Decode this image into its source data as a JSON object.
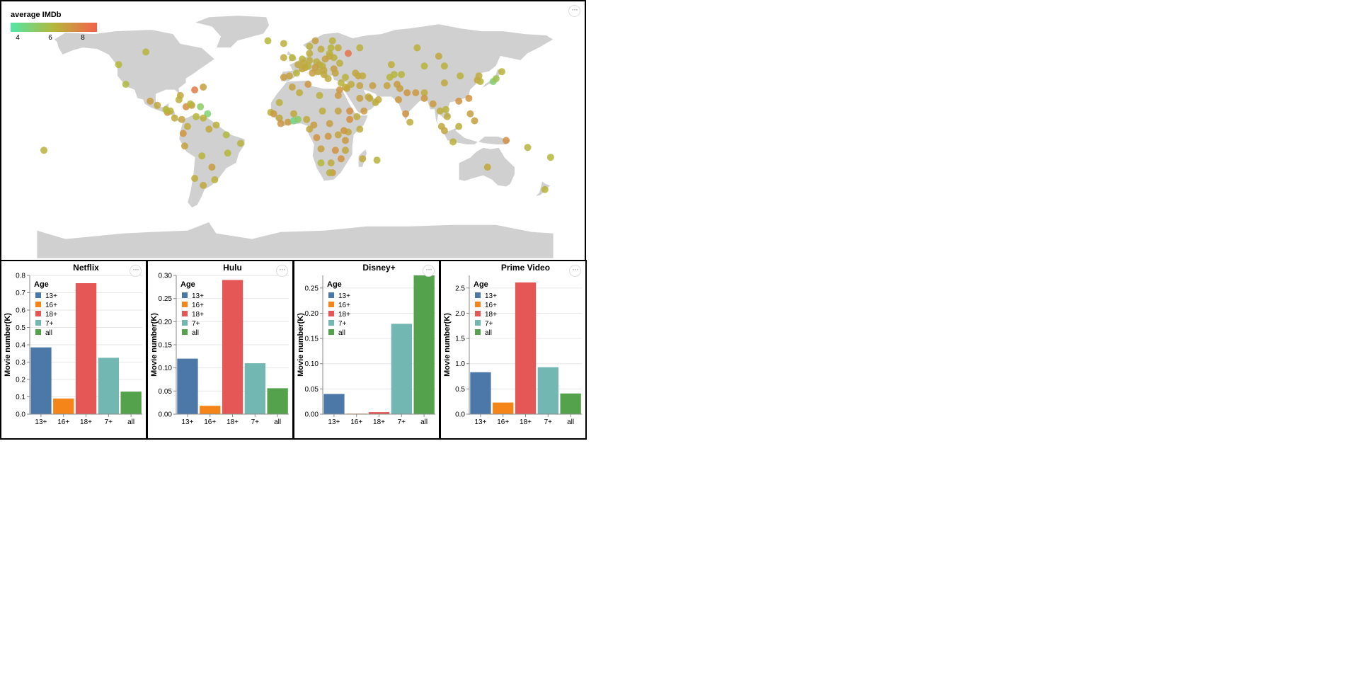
{
  "map": {
    "legend_title": "average IMDb",
    "legend_ticks": [
      "4",
      "6",
      "8"
    ],
    "colors": {
      "land": "#d0d0d0",
      "low": "#53e6a5",
      "mid": "#b4b83a",
      "high": "#f4614a"
    },
    "dots": [
      [
        -175,
        -13,
        6.2
      ],
      [
        -118,
        34,
        5.9
      ],
      [
        -104,
        57,
        6.1
      ],
      [
        -123,
        48,
        6.0
      ],
      [
        -96,
        19,
        6.4
      ],
      [
        -101,
        22,
        6.6
      ],
      [
        -89,
        14,
        6.8
      ],
      [
        -84,
        10,
        6.3
      ],
      [
        -79,
        9,
        6.5
      ],
      [
        -87,
        15,
        6.2
      ],
      [
        -90,
        16,
        6.0
      ],
      [
        -76,
        18,
        7.0
      ],
      [
        -72,
        19,
        6.6
      ],
      [
        -66,
        18,
        5.2
      ],
      [
        -61,
        13,
        4.9
      ],
      [
        -64,
        10,
        6.2
      ],
      [
        -75,
        4,
        6.3
      ],
      [
        -78,
        -1,
        6.8
      ],
      [
        -77,
        -10,
        6.5
      ],
      [
        -65,
        -17,
        6.1
      ],
      [
        -58,
        -25,
        6.6
      ],
      [
        -70,
        -33,
        6.3
      ],
      [
        -64,
        -38,
        6.4
      ],
      [
        -56,
        -34,
        6.2
      ],
      [
        -47,
        -15,
        6.0
      ],
      [
        -38,
        -8,
        6.1
      ],
      [
        -48,
        -2,
        5.9
      ],
      [
        -60,
        2,
        6.4
      ],
      [
        -55,
        5,
        6.2
      ],
      [
        -69,
        11,
        6.0
      ],
      [
        -70,
        30,
        7.4
      ],
      [
        -80,
        26,
        6.4
      ],
      [
        -81,
        23,
        6.2
      ],
      [
        -73,
        20,
        6.1
      ],
      [
        -64,
        32,
        6.6
      ],
      [
        -2,
        53,
        6.1
      ],
      [
        -8,
        53,
        6.3
      ],
      [
        2,
        48,
        6.4
      ],
      [
        -4,
        40,
        6.5
      ],
      [
        -8,
        39,
        6.6
      ],
      [
        12,
        42,
        6.6
      ],
      [
        10,
        51,
        6.3
      ],
      [
        5,
        52,
        6.2
      ],
      [
        15,
        50,
        6.2
      ],
      [
        17,
        48,
        6.4
      ],
      [
        19,
        47,
        6.2
      ],
      [
        21,
        52,
        6.5
      ],
      [
        24,
        54,
        6.5
      ],
      [
        25,
        60,
        6.1
      ],
      [
        18,
        59,
        6.3
      ],
      [
        10,
        61,
        6.2
      ],
      [
        26,
        65,
        6.2
      ],
      [
        14,
        65,
        6.6
      ],
      [
        -19,
        65,
        6.0
      ],
      [
        27,
        45,
        6.6
      ],
      [
        28,
        42,
        6.5
      ],
      [
        23,
        38,
        6.3
      ],
      [
        20,
        41,
        6.3
      ],
      [
        35,
        39,
        6.2
      ],
      [
        31,
        49,
        6.2
      ],
      [
        27,
        53,
        6.2
      ],
      [
        37,
        56,
        7.6
      ],
      [
        24,
        56,
        6.2
      ],
      [
        44,
        40,
        6.5
      ],
      [
        47,
        40,
        6.3
      ],
      [
        42,
        42,
        6.4
      ],
      [
        54,
        33,
        6.6
      ],
      [
        45,
        33,
        6.5
      ],
      [
        39,
        34,
        6.3
      ],
      [
        36,
        31,
        6.5
      ],
      [
        35,
        32,
        6.3
      ],
      [
        45,
        24,
        6.6
      ],
      [
        52,
        24,
        6.4
      ],
      [
        51,
        25,
        6.4
      ],
      [
        56,
        21,
        6.3
      ],
      [
        48,
        15,
        6.7
      ],
      [
        43,
        11,
        6.3
      ],
      [
        38,
        9,
        7.0
      ],
      [
        38,
        15,
        7.0
      ],
      [
        45,
        2,
        6.3
      ],
      [
        37,
        0,
        6.4
      ],
      [
        34,
        1,
        6.8
      ],
      [
        30,
        -2,
        6.5
      ],
      [
        35,
        -6,
        6.7
      ],
      [
        35,
        -13,
        6.4
      ],
      [
        28,
        -13,
        6.9
      ],
      [
        32,
        -19,
        6.9
      ],
      [
        25,
        -22,
        6.3
      ],
      [
        26,
        -29,
        6.7
      ],
      [
        24,
        -29,
        6.2
      ],
      [
        18,
        -22,
        6.0
      ],
      [
        18,
        -12,
        6.6
      ],
      [
        15,
        -4,
        6.9
      ],
      [
        23,
        -3,
        6.8
      ],
      [
        24,
        6,
        6.6
      ],
      [
        19,
        15,
        6.3
      ],
      [
        30,
        15,
        6.5
      ],
      [
        30,
        26,
        6.7
      ],
      [
        17,
        26,
        6.2
      ],
      [
        3,
        28,
        6.3
      ],
      [
        -2,
        32,
        6.5
      ],
      [
        9,
        34,
        6.8
      ],
      [
        -17,
        14,
        6.2
      ],
      [
        -11,
        10,
        6.4
      ],
      [
        -10,
        6,
        6.8
      ],
      [
        -5,
        7,
        6.7
      ],
      [
        -1,
        8,
        4.6
      ],
      [
        2,
        9,
        5.2
      ],
      [
        8,
        9,
        6.4
      ],
      [
        13,
        5,
        6.6
      ],
      [
        10,
        2,
        6.4
      ],
      [
        -15,
        13,
        6.7
      ],
      [
        -11,
        21,
        6.2
      ],
      [
        -1,
        13,
        6.4
      ],
      [
        47,
        -19,
        6.3
      ],
      [
        57,
        -20,
        6.1
      ],
      [
        69,
        41,
        6.0
      ],
      [
        66,
        39,
        6.1
      ],
      [
        74,
        41,
        6.1
      ],
      [
        67,
        48,
        6.3
      ],
      [
        90,
        47,
        6.1
      ],
      [
        104,
        47,
        6.2
      ],
      [
        90,
        28,
        6.3
      ],
      [
        78,
        28,
        6.8
      ],
      [
        84,
        28,
        6.7
      ],
      [
        72,
        23,
        6.7
      ],
      [
        77,
        13,
        6.9
      ],
      [
        80,
        7,
        6.3
      ],
      [
        90,
        24,
        6.8
      ],
      [
        96,
        20,
        6.7
      ],
      [
        101,
        15,
        6.3
      ],
      [
        105,
        16,
        6.1
      ],
      [
        106,
        11,
        6.3
      ],
      [
        102,
        4,
        6.4
      ],
      [
        104,
        1,
        6.4
      ],
      [
        114,
        4,
        6.2
      ],
      [
        110,
        -7,
        6.2
      ],
      [
        122,
        13,
        6.6
      ],
      [
        125,
        8,
        6.6
      ],
      [
        114,
        22,
        6.9
      ],
      [
        121,
        24,
        6.8
      ],
      [
        104,
        35,
        6.4
      ],
      [
        115,
        40,
        6.2
      ],
      [
        127,
        37,
        6.5
      ],
      [
        129,
        36,
        6.1
      ],
      [
        128,
        40,
        6.3
      ],
      [
        138,
        36,
        5.0
      ],
      [
        140,
        38,
        5.6
      ],
      [
        144,
        43,
        6.1
      ],
      [
        147,
        -6,
        7.0
      ],
      [
        134,
        -25,
        6.4
      ],
      [
        174,
        -41,
        6.1
      ],
      [
        178,
        -18,
        6.0
      ],
      [
        162,
        -11,
        6.1
      ],
      [
        100,
        54,
        6.4
      ],
      [
        45,
        60,
        6.2
      ],
      [
        85,
        60,
        6.2
      ],
      [
        71,
        34,
        6.6
      ],
      [
        64,
        33,
        6.5
      ],
      [
        58,
        23,
        6.3
      ],
      [
        73,
        31,
        6.6
      ],
      [
        7,
        46,
        6.4
      ],
      [
        14,
        46,
        6.6
      ],
      [
        20,
        44,
        6.4
      ],
      [
        9,
        47,
        6.2
      ],
      [
        16,
        43,
        6.4
      ],
      [
        1,
        42,
        6.1
      ],
      [
        -8,
        63,
        6.2
      ],
      [
        5,
        45,
        6.4
      ],
      [
        31,
        30,
        6.8
      ],
      [
        32,
        35,
        6.2
      ],
      [
        10,
        56,
        6.3
      ],
      [
        30,
        60,
        6.3
      ],
      [
        6,
        49,
        6.4
      ]
    ]
  },
  "charts": [
    {
      "title": "Netflix",
      "chart_data": {
        "type": "bar",
        "title": "Netflix",
        "categories": [
          "13+",
          "16+",
          "18+",
          "7+",
          "all"
        ],
        "values": [
          0.385,
          0.09,
          0.755,
          0.325,
          0.13
        ],
        "ylabel": "Movie number(K)",
        "ylim": [
          0,
          0.8
        ],
        "yticks": [
          "0.0",
          "0.1",
          "0.2",
          "0.3",
          "0.4",
          "0.5",
          "0.6",
          "0.7",
          "0.8"
        ],
        "legend_title": "Age",
        "legend": "top-left"
      }
    },
    {
      "title": "Hulu",
      "chart_data": {
        "type": "bar",
        "title": "Hulu",
        "categories": [
          "13+",
          "16+",
          "18+",
          "7+",
          "all"
        ],
        "values": [
          0.12,
          0.018,
          0.29,
          0.11,
          0.056
        ],
        "ylabel": "Movie number(K)",
        "ylim": [
          0,
          0.3
        ],
        "yticks": [
          "0.00",
          "0.05",
          "0.10",
          "0.15",
          "0.20",
          "0.25",
          "0.30"
        ],
        "legend_title": "Age",
        "legend": "top-left"
      }
    },
    {
      "title": "Disney+",
      "chart_data": {
        "type": "bar",
        "title": "Disney+",
        "categories": [
          "13+",
          "16+",
          "18+",
          "7+",
          "all"
        ],
        "values": [
          0.04,
          0.001,
          0.004,
          0.179,
          0.275
        ],
        "ylabel": "Movie number(K)",
        "ylim": [
          0,
          0.275
        ],
        "yticks": [
          "0.00",
          "0.05",
          "0.10",
          "0.15",
          "0.20",
          "0.25"
        ],
        "legend_title": "Age",
        "legend": "top-left"
      }
    },
    {
      "title": "Prime Video",
      "chart_data": {
        "type": "bar",
        "title": "Prime Video",
        "categories": [
          "13+",
          "16+",
          "18+",
          "7+",
          "all"
        ],
        "values": [
          0.83,
          0.23,
          2.61,
          0.93,
          0.41
        ],
        "ylabel": "Movie number(K)",
        "ylim": [
          0,
          2.75
        ],
        "yticks": [
          "0.0",
          "0.5",
          "1.0",
          "1.5",
          "2.0",
          "2.5"
        ],
        "legend_title": "Age",
        "legend": "top-left"
      }
    }
  ],
  "age_colors": [
    "#4c78a8",
    "#f58518",
    "#e45756",
    "#72b7b2",
    "#54a24b"
  ],
  "more_label": "···"
}
